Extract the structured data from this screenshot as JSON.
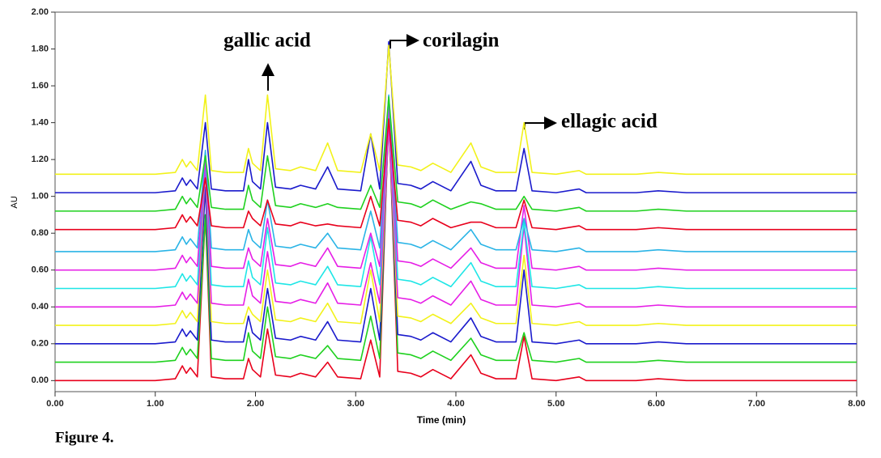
{
  "chart_data": {
    "type": "line",
    "y_label": "AU",
    "x_label": "Time (min)",
    "caption": "Figure 4.",
    "annotations": [
      "gallic acid",
      "corilagin",
      "ellagic acid"
    ],
    "x": [
      0,
      1.0,
      1.2,
      1.27,
      1.31,
      1.35,
      1.42,
      1.5,
      1.56,
      1.7,
      1.88,
      1.93,
      1.97,
      2.05,
      2.12,
      2.2,
      2.35,
      2.45,
      2.6,
      2.72,
      2.82,
      3.05,
      3.15,
      3.24,
      3.33,
      3.42,
      3.55,
      3.65,
      3.77,
      3.95,
      4.15,
      4.25,
      4.4,
      4.6,
      4.68,
      4.76,
      5.0,
      5.23,
      5.3,
      5.8,
      6.02,
      6.3,
      8.0
    ],
    "series": [
      {
        "color": "#e8001c",
        "values": [
          0,
          0,
          0.01,
          0.08,
          0.04,
          0.07,
          0.02,
          0.9,
          0.02,
          0.01,
          0.01,
          0.12,
          0.06,
          0.02,
          0.28,
          0.03,
          0.02,
          0.04,
          0.02,
          0.1,
          0.02,
          0.01,
          0.22,
          0.02,
          1.45,
          0.05,
          0.04,
          0.02,
          0.06,
          0.01,
          0.14,
          0.04,
          0.01,
          0.01,
          0.24,
          0.01,
          0,
          0.02,
          0,
          0,
          0.01,
          0,
          0
        ]
      },
      {
        "color": "#1fd11f",
        "values": [
          0.1,
          0.1,
          0.11,
          0.18,
          0.14,
          0.17,
          0.12,
          0.9,
          0.12,
          0.11,
          0.11,
          0.26,
          0.16,
          0.12,
          0.4,
          0.13,
          0.12,
          0.14,
          0.12,
          0.19,
          0.12,
          0.11,
          0.35,
          0.12,
          1.45,
          0.15,
          0.14,
          0.12,
          0.16,
          0.11,
          0.23,
          0.14,
          0.11,
          0.11,
          0.26,
          0.11,
          0.1,
          0.12,
          0.1,
          0.1,
          0.11,
          0.1,
          0.1
        ]
      },
      {
        "color": "#1a1acc",
        "values": [
          0.2,
          0.2,
          0.21,
          0.28,
          0.24,
          0.27,
          0.22,
          1.05,
          0.22,
          0.21,
          0.21,
          0.35,
          0.26,
          0.22,
          0.5,
          0.23,
          0.22,
          0.24,
          0.22,
          0.32,
          0.22,
          0.21,
          0.5,
          0.22,
          1.4,
          0.25,
          0.24,
          0.22,
          0.26,
          0.21,
          0.34,
          0.24,
          0.21,
          0.21,
          0.6,
          0.21,
          0.2,
          0.22,
          0.2,
          0.2,
          0.21,
          0.2,
          0.2
        ]
      },
      {
        "color": "#f2f21a",
        "values": [
          0.3,
          0.3,
          0.31,
          0.38,
          0.34,
          0.37,
          0.32,
          1.15,
          0.32,
          0.31,
          0.31,
          0.4,
          0.36,
          0.32,
          0.6,
          0.33,
          0.32,
          0.34,
          0.32,
          0.42,
          0.32,
          0.31,
          0.6,
          0.32,
          1.4,
          0.35,
          0.34,
          0.32,
          0.36,
          0.31,
          0.42,
          0.34,
          0.31,
          0.31,
          0.68,
          0.31,
          0.3,
          0.32,
          0.3,
          0.3,
          0.31,
          0.3,
          0.3
        ]
      },
      {
        "color": "#e61ee6",
        "values": [
          0.4,
          0.4,
          0.41,
          0.48,
          0.44,
          0.47,
          0.42,
          1.15,
          0.42,
          0.41,
          0.41,
          0.55,
          0.46,
          0.42,
          0.7,
          0.43,
          0.42,
          0.44,
          0.42,
          0.53,
          0.42,
          0.41,
          0.64,
          0.42,
          1.4,
          0.45,
          0.44,
          0.42,
          0.46,
          0.41,
          0.54,
          0.44,
          0.41,
          0.41,
          0.84,
          0.41,
          0.4,
          0.42,
          0.4,
          0.4,
          0.41,
          0.4,
          0.4
        ]
      },
      {
        "color": "#1ee6e6",
        "values": [
          0.5,
          0.5,
          0.51,
          0.58,
          0.54,
          0.57,
          0.52,
          1.2,
          0.52,
          0.51,
          0.51,
          0.65,
          0.56,
          0.52,
          0.83,
          0.53,
          0.52,
          0.54,
          0.52,
          0.62,
          0.52,
          0.51,
          0.78,
          0.52,
          1.5,
          0.55,
          0.54,
          0.52,
          0.56,
          0.51,
          0.64,
          0.54,
          0.51,
          0.51,
          0.86,
          0.51,
          0.5,
          0.52,
          0.5,
          0.5,
          0.51,
          0.5,
          0.5
        ]
      },
      {
        "color": "#e61ee6",
        "values": [
          0.6,
          0.6,
          0.61,
          0.68,
          0.64,
          0.67,
          0.62,
          1.2,
          0.62,
          0.61,
          0.61,
          0.72,
          0.66,
          0.62,
          0.88,
          0.63,
          0.62,
          0.64,
          0.62,
          0.72,
          0.62,
          0.61,
          0.8,
          0.62,
          1.5,
          0.65,
          0.64,
          0.62,
          0.66,
          0.61,
          0.72,
          0.64,
          0.61,
          0.61,
          0.95,
          0.61,
          0.6,
          0.62,
          0.6,
          0.6,
          0.61,
          0.6,
          0.6
        ]
      },
      {
        "color": "#2ab4e6",
        "values": [
          0.7,
          0.7,
          0.71,
          0.78,
          0.74,
          0.77,
          0.72,
          1.25,
          0.72,
          0.71,
          0.71,
          0.82,
          0.76,
          0.72,
          0.98,
          0.73,
          0.72,
          0.74,
          0.72,
          0.8,
          0.72,
          0.71,
          0.92,
          0.72,
          1.55,
          0.75,
          0.74,
          0.72,
          0.76,
          0.71,
          0.82,
          0.74,
          0.71,
          0.71,
          0.88,
          0.71,
          0.7,
          0.72,
          0.7,
          0.7,
          0.71,
          0.7,
          0.7
        ]
      },
      {
        "color": "#e8001c",
        "values": [
          0.82,
          0.82,
          0.83,
          0.9,
          0.86,
          0.89,
          0.84,
          1.1,
          0.84,
          0.83,
          0.83,
          0.92,
          0.88,
          0.84,
          0.98,
          0.85,
          0.84,
          0.86,
          0.84,
          0.85,
          0.84,
          0.83,
          1.0,
          0.84,
          1.42,
          0.87,
          0.86,
          0.84,
          0.88,
          0.83,
          0.86,
          0.86,
          0.83,
          0.83,
          0.98,
          0.83,
          0.82,
          0.84,
          0.82,
          0.82,
          0.83,
          0.82,
          0.82
        ]
      },
      {
        "color": "#1fd11f",
        "values": [
          0.92,
          0.92,
          0.93,
          1.0,
          0.96,
          0.99,
          0.94,
          1.22,
          0.94,
          0.93,
          0.93,
          1.06,
          0.98,
          0.94,
          1.22,
          0.95,
          0.94,
          0.96,
          0.94,
          0.96,
          0.94,
          0.93,
          1.06,
          0.94,
          1.54,
          0.97,
          0.96,
          0.94,
          0.98,
          0.93,
          0.97,
          0.96,
          0.93,
          0.93,
          1.0,
          0.93,
          0.92,
          0.94,
          0.92,
          0.92,
          0.93,
          0.92,
          0.92
        ]
      },
      {
        "color": "#1a1acc",
        "values": [
          1.02,
          1.02,
          1.03,
          1.1,
          1.06,
          1.09,
          1.04,
          1.4,
          1.04,
          1.03,
          1.03,
          1.2,
          1.08,
          1.04,
          1.4,
          1.05,
          1.04,
          1.06,
          1.04,
          1.16,
          1.04,
          1.03,
          1.34,
          1.04,
          1.84,
          1.07,
          1.06,
          1.04,
          1.08,
          1.03,
          1.19,
          1.06,
          1.03,
          1.03,
          1.26,
          1.03,
          1.02,
          1.04,
          1.02,
          1.02,
          1.03,
          1.02,
          1.02
        ]
      },
      {
        "color": "#f2f21a",
        "values": [
          1.12,
          1.12,
          1.13,
          1.2,
          1.16,
          1.19,
          1.14,
          1.55,
          1.14,
          1.13,
          1.13,
          1.26,
          1.18,
          1.14,
          1.55,
          1.15,
          1.14,
          1.16,
          1.14,
          1.29,
          1.14,
          1.13,
          1.34,
          1.14,
          1.82,
          1.17,
          1.16,
          1.14,
          1.18,
          1.13,
          1.29,
          1.16,
          1.13,
          1.13,
          1.4,
          1.13,
          1.12,
          1.14,
          1.12,
          1.12,
          1.13,
          1.12,
          1.12
        ]
      }
    ],
    "xlim": [
      0,
      8
    ],
    "xticks": [
      {
        "value": 0,
        "label": "0.00"
      },
      {
        "value": 1,
        "label": "1.00"
      },
      {
        "value": 2,
        "label": "2.00"
      },
      {
        "value": 3,
        "label": "3.00"
      },
      {
        "value": 4,
        "label": "4.00"
      },
      {
        "value": 5,
        "label": "5.00"
      },
      {
        "value": 6,
        "label": "6.00"
      },
      {
        "value": 7,
        "label": "7.00"
      },
      {
        "value": 8,
        "label": "8.00"
      }
    ],
    "ylim": [
      -0.06,
      2.0
    ],
    "yticks": [
      {
        "value": 0,
        "label": "0.00"
      },
      {
        "value": 0.2,
        "label": "0.20"
      },
      {
        "value": 0.4,
        "label": "0.40"
      },
      {
        "value": 0.6,
        "label": "0.60"
      },
      {
        "value": 0.8,
        "label": "0.80"
      },
      {
        "value": 1.0,
        "label": "1.00"
      },
      {
        "value": 1.2,
        "label": "1.20"
      },
      {
        "value": 1.4,
        "label": "1.40"
      },
      {
        "value": 1.6,
        "label": "1.60"
      },
      {
        "value": 1.8,
        "label": "1.80"
      },
      {
        "value": 2.0,
        "label": "2.00"
      }
    ]
  }
}
